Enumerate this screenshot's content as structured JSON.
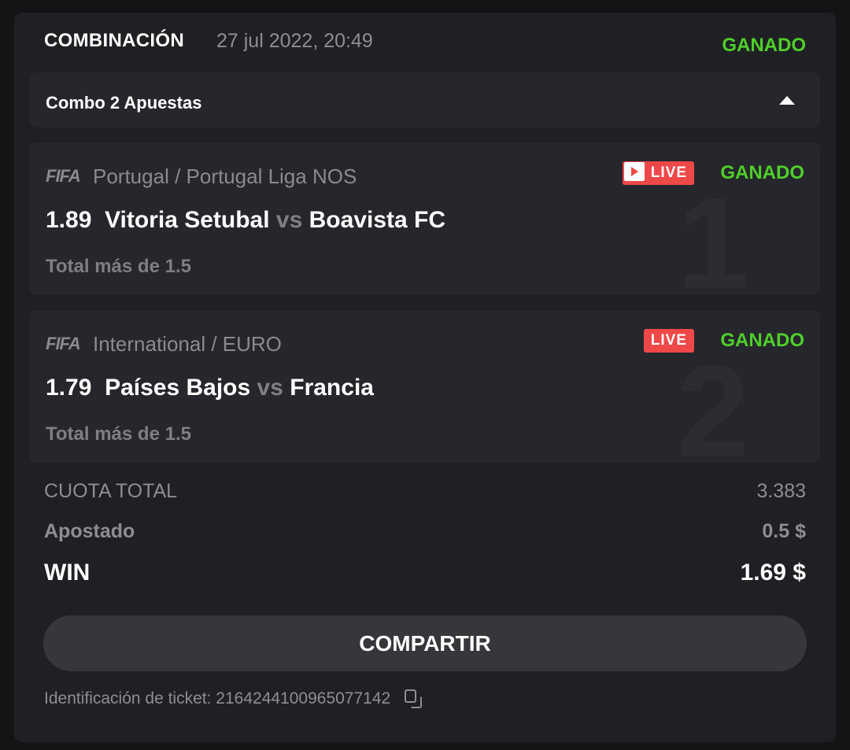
{
  "header": {
    "title": "COMBINACIÓN",
    "date": "27 jul 2022, 20:49",
    "status": "GANADO"
  },
  "combo": {
    "label": "Combo 2 Apuestas"
  },
  "bets": [
    {
      "index": "1",
      "sport_logo": "FIFA",
      "league": "Portugal / Portugal Liga NOS",
      "live": "LIVE",
      "status": "GANADO",
      "odds": "1.89",
      "home": "Vitoria Setubal",
      "vs": "vs",
      "away": "Boavista FC",
      "market": "Total más de 1.5"
    },
    {
      "index": "2",
      "sport_logo": "FIFA",
      "league": "International / EURO",
      "live": "LIVE",
      "status": "GANADO",
      "odds": "1.79",
      "home": "Países Bajos",
      "vs": "vs",
      "away": "Francia",
      "market": "Total más de 1.5"
    }
  ],
  "summary": {
    "total_odds_label": "CUOTA TOTAL",
    "total_odds": "3.383",
    "stake_label": "Apostado",
    "stake": "0.5 $",
    "win_label": "WIN",
    "win": "1.69 $"
  },
  "share_label": "COMPARTIR",
  "ticket": {
    "label": "Identificación de ticket:",
    "id": "2164244100965077142"
  },
  "colors": {
    "won": "#4fcf2a",
    "live": "#ee4848"
  }
}
